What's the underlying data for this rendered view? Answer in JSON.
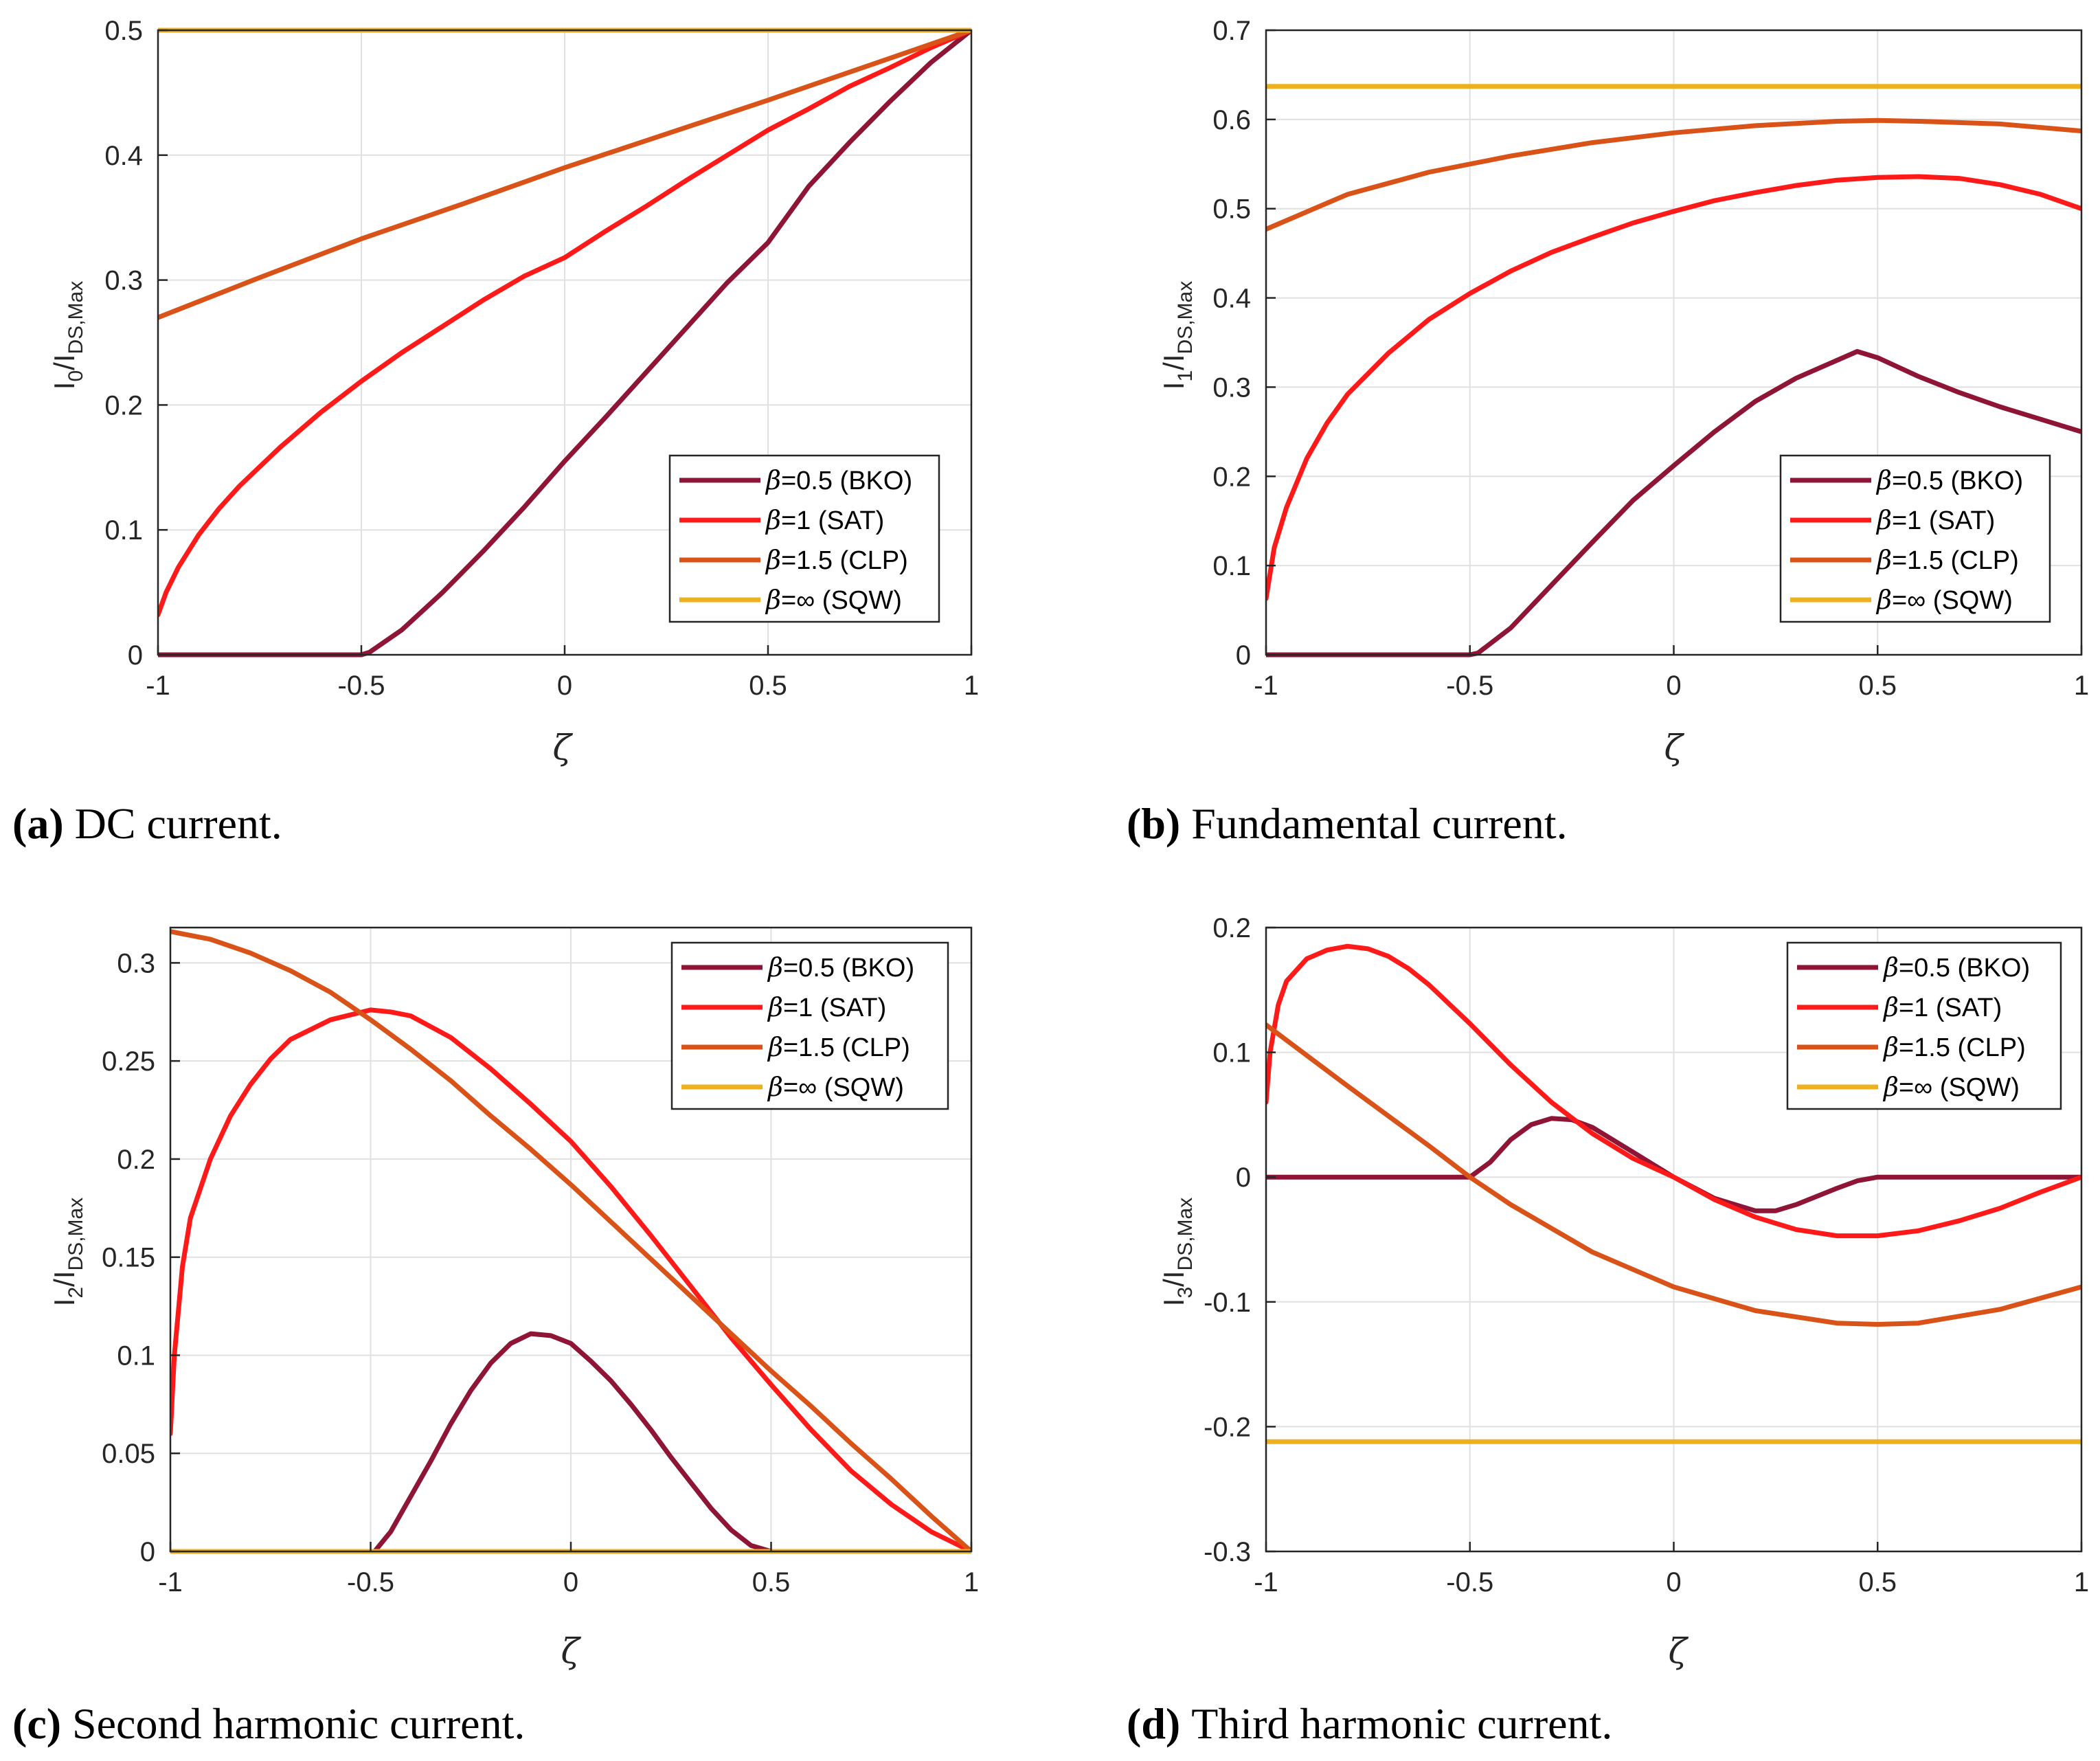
{
  "colors": {
    "bko": "#8E1535",
    "sat": "#FF1A1A",
    "clp": "#D95319",
    "sqw": "#EDB120",
    "grid": "#E0E0E0",
    "axis": "#262626"
  },
  "legend_entries": [
    {
      "beta": "β",
      "text": "=0.5 (BKO)"
    },
    {
      "beta": "β",
      "text": "=1 (SAT)"
    },
    {
      "beta": "β",
      "text": "=1.5 (CLP)"
    },
    {
      "beta": "β",
      "text": "=∞ (SQW)"
    }
  ],
  "chart_data": [
    {
      "id": "a",
      "type": "line",
      "caption_label": "(a)",
      "caption_text": "DC current.",
      "xlabel": "ζ",
      "ylabel_main": "I",
      "ylabel_sub1": "0",
      "ylabel_mid": "/I",
      "ylabel_sub2": "DS,Max",
      "xlim": [
        -1,
        1
      ],
      "ylim": [
        0,
        0.5
      ],
      "xticks": [
        -1,
        -0.5,
        0,
        0.5,
        1
      ],
      "xtick_labels": [
        "-1",
        "-0.5",
        "0",
        "0.5",
        "1"
      ],
      "yticks": [
        0,
        0.1,
        0.2,
        0.3,
        0.4,
        0.5
      ],
      "ytick_labels": [
        "0",
        "0.1",
        "0.2",
        "0.3",
        "0.4",
        "0.5"
      ],
      "grid": true,
      "legend_position": "lower-right",
      "series": [
        {
          "key": "bko",
          "x": [
            -1,
            -0.5,
            -0.48,
            -0.4,
            -0.3,
            -0.2,
            -0.1,
            0,
            0.1,
            0.2,
            0.3,
            0.4,
            0.5,
            0.6,
            0.7,
            0.8,
            0.9,
            1
          ],
          "y": [
            0,
            0,
            0.002,
            0.02,
            0.05,
            0.083,
            0.118,
            0.155,
            0.19,
            0.226,
            0.262,
            0.298,
            0.33,
            0.375,
            0.41,
            0.443,
            0.474,
            0.5
          ]
        },
        {
          "key": "sat",
          "x": [
            -1,
            -0.98,
            -0.95,
            -0.9,
            -0.85,
            -0.8,
            -0.7,
            -0.6,
            -0.5,
            -0.4,
            -0.3,
            -0.2,
            -0.1,
            0,
            0.1,
            0.2,
            0.3,
            0.4,
            0.5,
            0.6,
            0.7,
            0.8,
            0.9,
            1
          ],
          "y": [
            0.032,
            0.05,
            0.07,
            0.096,
            0.117,
            0.135,
            0.166,
            0.194,
            0.219,
            0.242,
            0.263,
            0.284,
            0.303,
            0.318,
            0.339,
            0.359,
            0.38,
            0.4,
            0.42,
            0.437,
            0.455,
            0.47,
            0.486,
            0.5
          ]
        },
        {
          "key": "clp",
          "x": [
            -1,
            -0.75,
            -0.5,
            -0.25,
            0,
            0.25,
            0.5,
            0.75,
            1
          ],
          "y": [
            0.27,
            0.302,
            0.333,
            0.361,
            0.39,
            0.417,
            0.444,
            0.472,
            0.5
          ]
        },
        {
          "key": "sqw",
          "x": [
            -1,
            1
          ],
          "y": [
            0.5,
            0.5
          ]
        }
      ]
    },
    {
      "id": "b",
      "type": "line",
      "caption_label": "(b)",
      "caption_text": "Fundamental current.",
      "xlabel": "ζ",
      "ylabel_main": "I",
      "ylabel_sub1": "1",
      "ylabel_mid": "/I",
      "ylabel_sub2": "DS,Max",
      "xlim": [
        -1,
        1
      ],
      "ylim": [
        0,
        0.7
      ],
      "xticks": [
        -1,
        -0.5,
        0,
        0.5,
        1
      ],
      "xtick_labels": [
        "-1",
        "-0.5",
        "0",
        "0.5",
        "1"
      ],
      "yticks": [
        0,
        0.1,
        0.2,
        0.3,
        0.4,
        0.5,
        0.6,
        0.7
      ],
      "ytick_labels": [
        "0",
        "0.1",
        "0.2",
        "0.3",
        "0.4",
        "0.5",
        "0.6",
        "0.7"
      ],
      "grid": true,
      "legend_position": "lower-right",
      "series": [
        {
          "key": "bko",
          "x": [
            -1,
            -0.5,
            -0.48,
            -0.4,
            -0.3,
            -0.2,
            -0.1,
            0,
            0.1,
            0.2,
            0.3,
            0.4,
            0.45,
            0.5,
            0.6,
            0.7,
            0.8,
            0.9,
            1
          ],
          "y": [
            0,
            0,
            0.002,
            0.03,
            0.078,
            0.126,
            0.173,
            0.212,
            0.25,
            0.284,
            0.31,
            0.33,
            0.34,
            0.333,
            0.312,
            0.294,
            0.278,
            0.264,
            0.25
          ]
        },
        {
          "key": "sat",
          "x": [
            -1,
            -0.98,
            -0.95,
            -0.9,
            -0.85,
            -0.8,
            -0.7,
            -0.6,
            -0.5,
            -0.4,
            -0.3,
            -0.2,
            -0.1,
            0,
            0.1,
            0.2,
            0.3,
            0.4,
            0.5,
            0.6,
            0.7,
            0.8,
            0.9,
            1
          ],
          "y": [
            0.063,
            0.12,
            0.165,
            0.22,
            0.26,
            0.292,
            0.338,
            0.376,
            0.405,
            0.43,
            0.451,
            0.468,
            0.484,
            0.497,
            0.509,
            0.518,
            0.526,
            0.532,
            0.535,
            0.536,
            0.534,
            0.527,
            0.516,
            0.5
          ]
        },
        {
          "key": "clp",
          "x": [
            -1,
            -0.8,
            -0.6,
            -0.4,
            -0.2,
            0,
            0.2,
            0.4,
            0.5,
            0.6,
            0.8,
            1
          ],
          "y": [
            0.477,
            0.516,
            0.541,
            0.559,
            0.574,
            0.585,
            0.593,
            0.598,
            0.599,
            0.598,
            0.595,
            0.587
          ]
        },
        {
          "key": "sqw",
          "x": [
            -1,
            1
          ],
          "y": [
            0.637,
            0.637
          ]
        }
      ]
    },
    {
      "id": "c",
      "type": "line",
      "caption_label": "(c)",
      "caption_text": "Second harmonic current.",
      "xlabel": "ζ",
      "ylabel_main": "I",
      "ylabel_sub1": "2",
      "ylabel_mid": "/I",
      "ylabel_sub2": "DS,Max",
      "xlim": [
        -1,
        1
      ],
      "ylim": [
        0,
        0.318
      ],
      "xticks": [
        -1,
        -0.5,
        0,
        0.5,
        1
      ],
      "xtick_labels": [
        "-1",
        "-0.5",
        "0",
        "0.5",
        "1"
      ],
      "yticks": [
        0,
        0.05,
        0.1,
        0.15,
        0.2,
        0.25,
        0.3
      ],
      "ytick_labels": [
        "0",
        "0.05",
        "0.1",
        "0.15",
        "0.2",
        "0.25",
        "0.3"
      ],
      "grid": true,
      "legend_position": "top-right",
      "series": [
        {
          "key": "bko",
          "x": [
            -0.49,
            -0.45,
            -0.4,
            -0.35,
            -0.3,
            -0.25,
            -0.2,
            -0.15,
            -0.1,
            -0.05,
            0,
            0.05,
            0.1,
            0.15,
            0.2,
            0.25,
            0.3,
            0.35,
            0.4,
            0.45,
            0.5
          ],
          "y": [
            0,
            0.01,
            0.028,
            0.046,
            0.065,
            0.082,
            0.096,
            0.106,
            0.111,
            0.11,
            0.106,
            0.097,
            0.087,
            0.075,
            0.062,
            0.048,
            0.035,
            0.022,
            0.011,
            0.003,
            0
          ]
        },
        {
          "key": "sat",
          "x": [
            -1,
            -0.99,
            -0.97,
            -0.95,
            -0.9,
            -0.85,
            -0.8,
            -0.75,
            -0.7,
            -0.6,
            -0.5,
            -0.45,
            -0.4,
            -0.3,
            -0.2,
            -0.1,
            0,
            0.1,
            0.2,
            0.3,
            0.4,
            0.5,
            0.6,
            0.7,
            0.8,
            0.9,
            1
          ],
          "y": [
            0.06,
            0.1,
            0.145,
            0.17,
            0.2,
            0.222,
            0.238,
            0.251,
            0.261,
            0.271,
            0.276,
            0.275,
            0.273,
            0.262,
            0.246,
            0.228,
            0.209,
            0.186,
            0.161,
            0.135,
            0.109,
            0.085,
            0.062,
            0.041,
            0.024,
            0.01,
            0
          ]
        },
        {
          "key": "clp",
          "x": [
            -1,
            -0.9,
            -0.8,
            -0.7,
            -0.6,
            -0.5,
            -0.4,
            -0.3,
            -0.2,
            -0.1,
            0,
            0.1,
            0.2,
            0.3,
            0.4,
            0.5,
            0.6,
            0.7,
            0.8,
            0.9,
            1
          ],
          "y": [
            0.316,
            0.312,
            0.305,
            0.296,
            0.285,
            0.271,
            0.256,
            0.24,
            0.222,
            0.205,
            0.187,
            0.168,
            0.149,
            0.13,
            0.111,
            0.092,
            0.074,
            0.055,
            0.037,
            0.018,
            0
          ]
        },
        {
          "key": "sqw",
          "x": [
            -1,
            1
          ],
          "y": [
            0,
            0
          ]
        }
      ]
    },
    {
      "id": "d",
      "type": "line",
      "caption_label": "(d)",
      "caption_text": "Third harmonic current.",
      "xlabel": "ζ",
      "ylabel_main": "I",
      "ylabel_sub1": "3",
      "ylabel_mid": "/I",
      "ylabel_sub2": "DS,Max",
      "xlim": [
        -1,
        1
      ],
      "ylim": [
        -0.3,
        0.2
      ],
      "xticks": [
        -1,
        -0.5,
        0,
        0.5,
        1
      ],
      "xtick_labels": [
        "-1",
        "-0.5",
        "0",
        "0.5",
        "1"
      ],
      "yticks": [
        -0.3,
        -0.2,
        -0.1,
        0,
        0.1,
        0.2
      ],
      "ytick_labels": [
        "-0.3",
        "-0.2",
        "-0.1",
        "0",
        "0.1",
        "0.2"
      ],
      "grid": true,
      "legend_position": "top-right",
      "series": [
        {
          "key": "bko",
          "x": [
            -1,
            -0.5,
            -0.45,
            -0.4,
            -0.35,
            -0.3,
            -0.25,
            -0.2,
            -0.1,
            0,
            0.1,
            0.2,
            0.25,
            0.3,
            0.4,
            0.45,
            0.5,
            0.6,
            0.8,
            1
          ],
          "y": [
            0,
            0,
            0.012,
            0.03,
            0.042,
            0.047,
            0.046,
            0.04,
            0.02,
            0,
            -0.017,
            -0.027,
            -0.027,
            -0.022,
            -0.009,
            -0.003,
            0,
            0,
            0,
            0
          ]
        },
        {
          "key": "sat",
          "x": [
            -1,
            -0.99,
            -0.97,
            -0.95,
            -0.9,
            -0.85,
            -0.8,
            -0.75,
            -0.7,
            -0.65,
            -0.6,
            -0.5,
            -0.4,
            -0.3,
            -0.2,
            -0.1,
            0,
            0.1,
            0.2,
            0.3,
            0.4,
            0.5,
            0.6,
            0.7,
            0.8,
            0.9,
            0.95,
            1
          ],
          "y": [
            0.06,
            0.1,
            0.138,
            0.157,
            0.175,
            0.182,
            0.185,
            0.183,
            0.177,
            0.167,
            0.154,
            0.123,
            0.09,
            0.06,
            0.035,
            0.015,
            0,
            -0.018,
            -0.032,
            -0.042,
            -0.047,
            -0.047,
            -0.043,
            -0.035,
            -0.025,
            -0.012,
            -0.006,
            0
          ]
        },
        {
          "key": "clp",
          "x": [
            -1,
            -0.8,
            -0.6,
            -0.5,
            -0.4,
            -0.2,
            0,
            0.2,
            0.4,
            0.5,
            0.6,
            0.8,
            1
          ],
          "y": [
            0.122,
            0.073,
            0.025,
            0,
            -0.022,
            -0.06,
            -0.088,
            -0.107,
            -0.117,
            -0.118,
            -0.117,
            -0.106,
            -0.088
          ]
        },
        {
          "key": "sqw",
          "x": [
            -1,
            1
          ],
          "y": [
            -0.212,
            -0.212
          ]
        }
      ]
    }
  ]
}
